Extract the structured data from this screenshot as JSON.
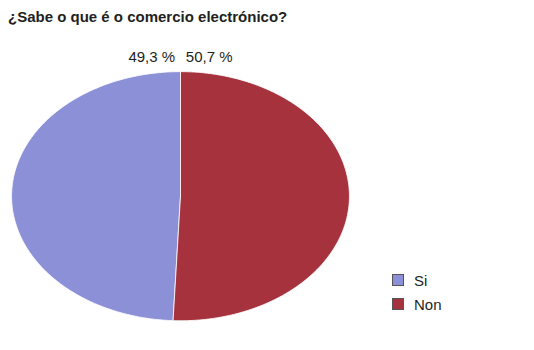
{
  "chart_data": {
    "type": "pie",
    "title": "¿Sabe o que é o comercio electrónico?",
    "categories": [
      "Si",
      "Non"
    ],
    "values": [
      49.3,
      50.7
    ],
    "value_labels": [
      "49,3 %",
      "50,7 %"
    ],
    "colors": [
      "#8c90d6",
      "#a5323c"
    ],
    "data_labels": true,
    "legend": "bottom-right"
  }
}
